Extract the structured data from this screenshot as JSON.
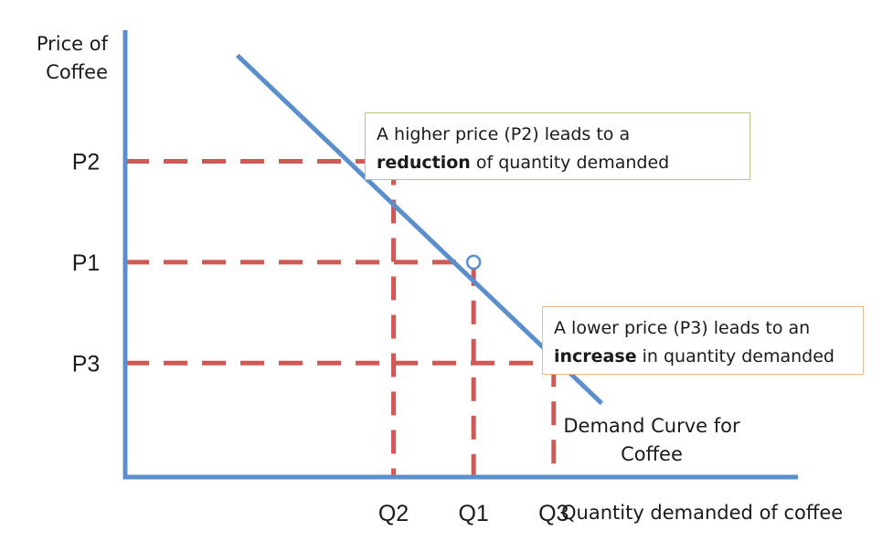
{
  "chart_data": {
    "type": "line",
    "ylabel_lines": [
      "Price of",
      "Coffee"
    ],
    "xlabel": "Quantity demanded of coffee",
    "price_levels": [
      {
        "label": "P2",
        "y": 3
      },
      {
        "label": "P1",
        "y": 2
      },
      {
        "label": "P3",
        "y": 1
      }
    ],
    "quantity_levels": [
      {
        "label": "Q2",
        "x": 1
      },
      {
        "label": "Q1",
        "x": 2
      },
      {
        "label": "Q3",
        "x": 3
      }
    ],
    "points": [
      {
        "x": 1,
        "y": 3,
        "price": "P2",
        "quantity": "Q2"
      },
      {
        "x": 2,
        "y": 2,
        "price": "P1",
        "quantity": "Q1"
      },
      {
        "x": 3,
        "y": 1,
        "price": "P3",
        "quantity": "Q3"
      }
    ],
    "series": [
      {
        "name": "Demand Curve for Coffee",
        "label_lines": [
          "Demand Curve for",
          "Coffee"
        ],
        "line": [
          {
            "x": -0.95,
            "y": 4.05
          },
          {
            "x": 3.6,
            "y": 0.6
          }
        ]
      }
    ],
    "xlim": [
      -2.35,
      6.05
    ],
    "ylim": [
      -0.13,
      4.3
    ],
    "colors": {
      "axis": "#5b8fcc",
      "curve": "#5b8fcc",
      "guide": "#cf5a55",
      "marker_fill": "#ffffff"
    },
    "annotations": [
      {
        "id": "higher",
        "parts": [
          {
            "text": "A higher price (P2) leads to a",
            "bold": false
          },
          {
            "br": true
          },
          {
            "text": "reduction",
            "bold": true
          },
          {
            "text": " of quantity demanded",
            "bold": false
          }
        ],
        "border_color": "#a9c98a"
      },
      {
        "id": "lower",
        "parts": [
          {
            "text": "A lower price (P3) leads to an",
            "bold": false
          },
          {
            "br": true
          },
          {
            "text": "increase",
            "bold": true
          },
          {
            "text": " in quantity demanded",
            "bold": false
          }
        ],
        "border_color": "#f0b889"
      }
    ]
  }
}
